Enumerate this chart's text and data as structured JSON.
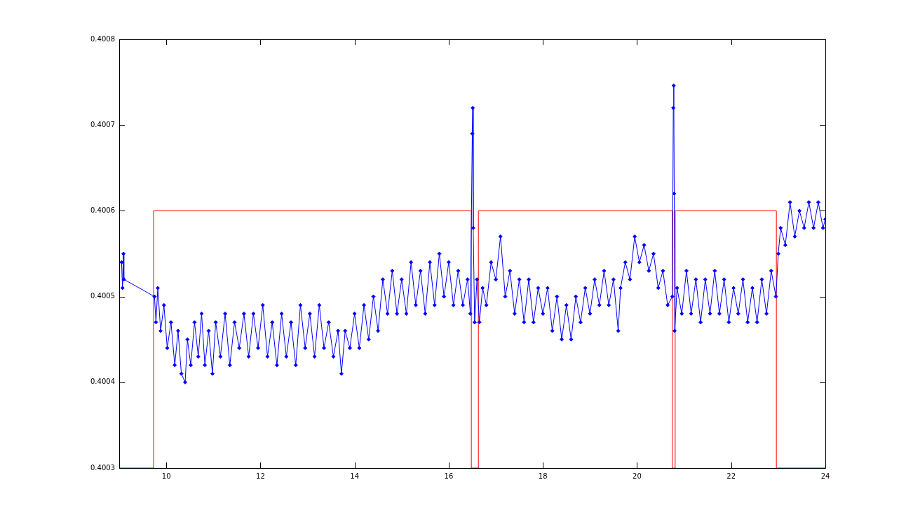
{
  "chart_data": {
    "type": "line",
    "xlim": [
      9,
      24
    ],
    "ylim": [
      0.4003,
      0.4008
    ],
    "xticks": [
      10,
      12,
      14,
      16,
      18,
      20,
      22,
      24
    ],
    "yticks": [
      0.4003,
      0.4004,
      0.4005,
      0.4006,
      0.4007,
      0.4008
    ],
    "grid": false,
    "legend": false,
    "series": [
      {
        "type": "line",
        "color": "#0000ff",
        "marker": "diamond",
        "x": [
          9.05,
          9.07,
          9.09,
          9.1,
          9.75,
          9.78,
          9.82,
          9.88,
          9.95,
          10.02,
          10.1,
          10.18,
          10.25,
          10.32,
          10.4,
          10.45,
          10.52,
          10.6,
          10.68,
          10.75,
          10.82,
          10.9,
          10.98,
          11.05,
          11.15,
          11.25,
          11.35,
          11.45,
          11.55,
          11.65,
          11.75,
          11.85,
          11.95,
          12.05,
          12.15,
          12.25,
          12.35,
          12.45,
          12.55,
          12.65,
          12.75,
          12.85,
          12.95,
          13.05,
          13.15,
          13.25,
          13.35,
          13.45,
          13.55,
          13.65,
          13.72,
          13.8,
          13.9,
          14.0,
          14.1,
          14.2,
          14.3,
          14.4,
          14.5,
          14.6,
          14.7,
          14.8,
          14.9,
          15.0,
          15.1,
          15.2,
          15.3,
          15.4,
          15.5,
          15.6,
          15.7,
          15.8,
          15.9,
          16.0,
          16.1,
          16.2,
          16.3,
          16.4,
          16.46,
          16.5,
          16.51,
          16.52,
          16.55,
          16.6,
          16.65,
          16.72,
          16.8,
          16.9,
          17.0,
          17.1,
          17.2,
          17.3,
          17.4,
          17.5,
          17.6,
          17.7,
          17.8,
          17.9,
          18.0,
          18.1,
          18.2,
          18.3,
          18.4,
          18.5,
          18.6,
          18.7,
          18.8,
          18.9,
          19.0,
          19.1,
          19.2,
          19.3,
          19.4,
          19.5,
          19.6,
          19.65,
          19.75,
          19.85,
          19.95,
          20.05,
          20.15,
          20.25,
          20.35,
          20.45,
          20.55,
          20.65,
          20.75,
          20.77,
          20.78,
          20.79,
          20.8,
          20.85,
          20.95,
          21.05,
          21.15,
          21.25,
          21.35,
          21.45,
          21.55,
          21.65,
          21.75,
          21.85,
          21.95,
          22.05,
          22.15,
          22.25,
          22.35,
          22.45,
          22.55,
          22.65,
          22.75,
          22.85,
          22.95,
          23.0,
          23.05,
          23.15,
          23.25,
          23.35,
          23.45,
          23.55,
          23.65,
          23.75,
          23.85,
          23.95,
          24.0
        ],
        "values": [
          0.40054,
          0.40051,
          0.40055,
          0.40052,
          0.4005,
          0.40047,
          0.40051,
          0.40046,
          0.40049,
          0.40044,
          0.40047,
          0.40042,
          0.40046,
          0.40041,
          0.4004,
          0.40045,
          0.40042,
          0.40047,
          0.40043,
          0.40048,
          0.40042,
          0.40046,
          0.40041,
          0.40047,
          0.40043,
          0.40048,
          0.40042,
          0.40047,
          0.40044,
          0.40048,
          0.40043,
          0.40048,
          0.40044,
          0.40049,
          0.40043,
          0.40047,
          0.40042,
          0.40048,
          0.40043,
          0.40047,
          0.40042,
          0.40049,
          0.40044,
          0.40048,
          0.40043,
          0.40049,
          0.40044,
          0.40047,
          0.40043,
          0.40046,
          0.40041,
          0.40046,
          0.40044,
          0.40048,
          0.40044,
          0.40049,
          0.40045,
          0.4005,
          0.40046,
          0.40052,
          0.40048,
          0.40053,
          0.40048,
          0.40052,
          0.40048,
          0.40054,
          0.40049,
          0.40053,
          0.40048,
          0.40054,
          0.40049,
          0.40055,
          0.4005,
          0.40054,
          0.40049,
          0.40053,
          0.40049,
          0.40052,
          0.40048,
          0.40069,
          0.40072,
          0.40058,
          0.40047,
          0.40052,
          0.40047,
          0.40051,
          0.40049,
          0.40054,
          0.40052,
          0.40057,
          0.4005,
          0.40053,
          0.40048,
          0.40052,
          0.40047,
          0.40052,
          0.40047,
          0.40051,
          0.40048,
          0.40051,
          0.40046,
          0.4005,
          0.40045,
          0.40049,
          0.40045,
          0.4005,
          0.40047,
          0.40051,
          0.40048,
          0.40052,
          0.40049,
          0.40053,
          0.40049,
          0.40052,
          0.40046,
          0.40051,
          0.40054,
          0.40052,
          0.40057,
          0.40054,
          0.40056,
          0.40053,
          0.40055,
          0.40051,
          0.40053,
          0.40049,
          0.4005,
          0.40072,
          0.400746,
          0.40062,
          0.40046,
          0.40051,
          0.40048,
          0.40053,
          0.40048,
          0.40052,
          0.40047,
          0.40052,
          0.40048,
          0.40053,
          0.40048,
          0.40052,
          0.40047,
          0.40051,
          0.40048,
          0.40052,
          0.40047,
          0.40051,
          0.40047,
          0.40052,
          0.40048,
          0.40053,
          0.4005,
          0.40055,
          0.40058,
          0.40056,
          0.40061,
          0.40057,
          0.4006,
          0.40058,
          0.40061,
          0.40058,
          0.40061,
          0.40058,
          0.40059
        ]
      },
      {
        "type": "step",
        "color": "#ff0000",
        "marker": "none",
        "x": [
          9,
          9.73,
          16.48,
          16.63,
          20.75,
          20.81,
          22.96,
          24
        ],
        "values": [
          0.4003,
          0.4006,
          0.4003,
          0.4006,
          0.4003,
          0.4006,
          0.4003,
          0.4003
        ]
      }
    ]
  }
}
